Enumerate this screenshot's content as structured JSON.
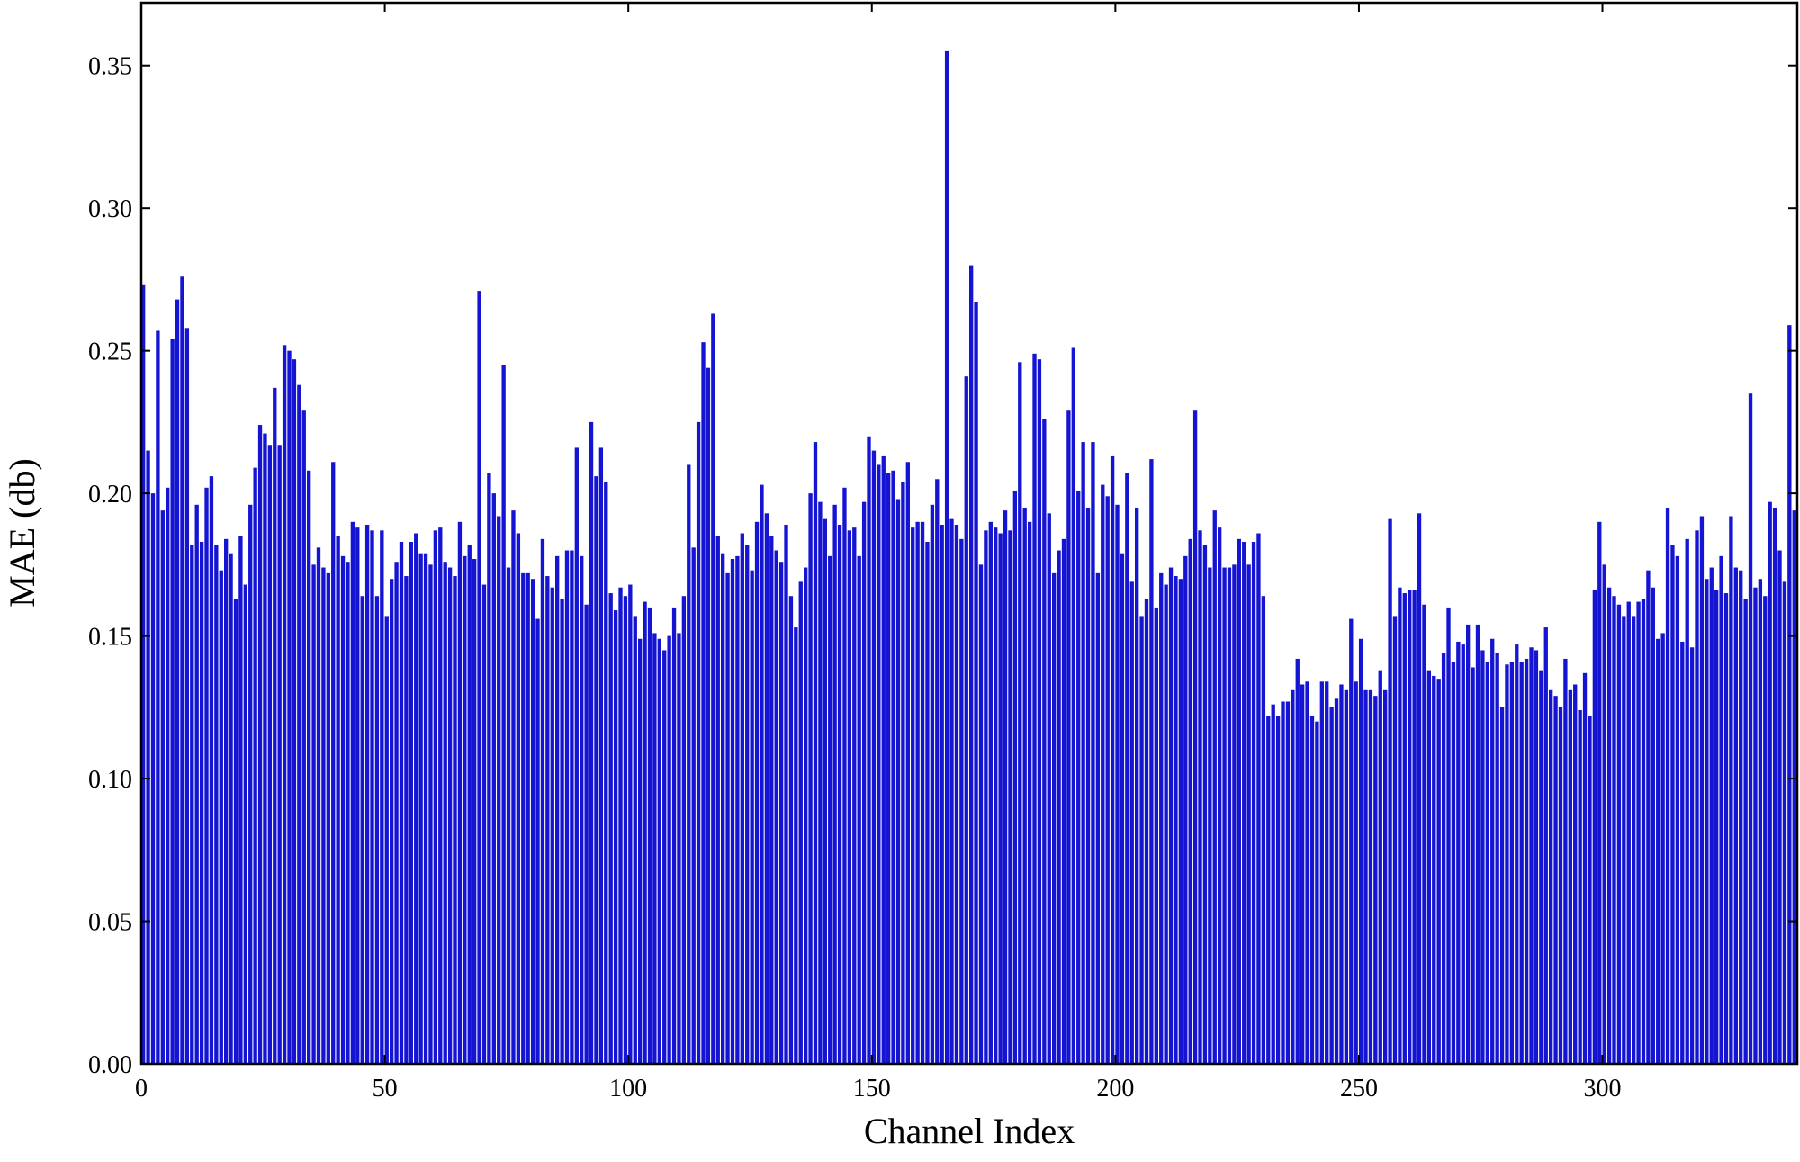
{
  "chart_data": {
    "type": "bar",
    "xlabel": "Channel Index",
    "ylabel": "MAE (db)",
    "color": "#1414d2",
    "bar_width": 0.8,
    "xlim": [
      0,
      340
    ],
    "xticks": [
      0,
      50,
      100,
      150,
      200,
      250,
      300
    ],
    "ylim": [
      0,
      0.372
    ],
    "yticks": [
      {
        "value": 0,
        "label": "0.00"
      },
      0.05,
      {
        "value": 0.1,
        "label": "0.10"
      },
      0.15,
      {
        "value": 0.2,
        "label": "0.20"
      },
      0.25,
      {
        "value": 0.3,
        "label": "0.30"
      },
      0.35
    ],
    "x": [
      0,
      1,
      2,
      3,
      4,
      5,
      6,
      7,
      8,
      9,
      10,
      11,
      12,
      13,
      14,
      15,
      16,
      17,
      18,
      19,
      20,
      21,
      22,
      23,
      24,
      25,
      26,
      27,
      28,
      29,
      30,
      31,
      32,
      33,
      34,
      35,
      36,
      37,
      38,
      39,
      40,
      41,
      42,
      43,
      44,
      45,
      46,
      47,
      48,
      49,
      50,
      51,
      52,
      53,
      54,
      55,
      56,
      57,
      58,
      59,
      60,
      61,
      62,
      63,
      64,
      65,
      66,
      67,
      68,
      69,
      70,
      71,
      72,
      73,
      74,
      75,
      76,
      77,
      78,
      79,
      80,
      81,
      82,
      83,
      84,
      85,
      86,
      87,
      88,
      89,
      90,
      91,
      92,
      93,
      94,
      95,
      96,
      97,
      98,
      99,
      100,
      101,
      102,
      103,
      104,
      105,
      106,
      107,
      108,
      109,
      110,
      111,
      112,
      113,
      114,
      115,
      116,
      117,
      118,
      119,
      120,
      121,
      122,
      123,
      124,
      125,
      126,
      127,
      128,
      129,
      130,
      131,
      132,
      133,
      134,
      135,
      136,
      137,
      138,
      139,
      140,
      141,
      142,
      143,
      144,
      145,
      146,
      147,
      148,
      149,
      150,
      151,
      152,
      153,
      154,
      155,
      156,
      157,
      158,
      159,
      160,
      161,
      162,
      163,
      164,
      165,
      166,
      167,
      168,
      169,
      170,
      171,
      172,
      173,
      174,
      175,
      176,
      177,
      178,
      179,
      180,
      181,
      182,
      183,
      184,
      185,
      186,
      187,
      188,
      189,
      190,
      191,
      192,
      193,
      194,
      195,
      196,
      197,
      198,
      199,
      200,
      201,
      202,
      203,
      204,
      205,
      206,
      207,
      208,
      209,
      210,
      211,
      212,
      213,
      214,
      215,
      216,
      217,
      218,
      219,
      220,
      221,
      222,
      223,
      224,
      225,
      226,
      227,
      228,
      229,
      230,
      231,
      232,
      233,
      234,
      235,
      236,
      237,
      238,
      239,
      240,
      241,
      242,
      243,
      244,
      245,
      246,
      247,
      248,
      249,
      250,
      251,
      252,
      253,
      254,
      255,
      256,
      257,
      258,
      259,
      260,
      261,
      262,
      263,
      264,
      265,
      266,
      267,
      268,
      269,
      270,
      271,
      272,
      273,
      274,
      275,
      276,
      277,
      278,
      279,
      280,
      281,
      282,
      283,
      284,
      285,
      286,
      287,
      288,
      289,
      290,
      291,
      292,
      293,
      294,
      295,
      296,
      297,
      298,
      299,
      300,
      301,
      302,
      303,
      304,
      305,
      306,
      307,
      308,
      309,
      310,
      311,
      312,
      313,
      314,
      315,
      316,
      317,
      318,
      319,
      320,
      321,
      322,
      323,
      324,
      325,
      326,
      327,
      328,
      329,
      330,
      331,
      332,
      333,
      334,
      335,
      336,
      337,
      338,
      339
    ],
    "values": [
      0.273,
      0.215,
      0.2,
      0.257,
      0.194,
      0.202,
      0.254,
      0.268,
      0.276,
      0.258,
      0.182,
      0.196,
      0.183,
      0.202,
      0.206,
      0.182,
      0.173,
      0.184,
      0.179,
      0.163,
      0.185,
      0.168,
      0.196,
      0.209,
      0.224,
      0.221,
      0.217,
      0.237,
      0.217,
      0.252,
      0.25,
      0.247,
      0.238,
      0.229,
      0.208,
      0.175,
      0.181,
      0.174,
      0.172,
      0.211,
      0.185,
      0.178,
      0.176,
      0.19,
      0.188,
      0.164,
      0.189,
      0.187,
      0.164,
      0.187,
      0.157,
      0.17,
      0.176,
      0.183,
      0.171,
      0.183,
      0.186,
      0.179,
      0.179,
      0.175,
      0.187,
      0.188,
      0.176,
      0.174,
      0.171,
      0.19,
      0.178,
      0.182,
      0.177,
      0.271,
      0.168,
      0.207,
      0.2,
      0.192,
      0.245,
      0.174,
      0.194,
      0.186,
      0.172,
      0.172,
      0.17,
      0.156,
      0.184,
      0.171,
      0.167,
      0.178,
      0.163,
      0.18,
      0.18,
      0.216,
      0.178,
      0.161,
      0.225,
      0.206,
      0.216,
      0.204,
      0.165,
      0.159,
      0.167,
      0.164,
      0.168,
      0.157,
      0.149,
      0.162,
      0.16,
      0.151,
      0.149,
      0.145,
      0.15,
      0.16,
      0.151,
      0.164,
      0.21,
      0.181,
      0.225,
      0.253,
      0.244,
      0.263,
      0.185,
      0.179,
      0.172,
      0.177,
      0.178,
      0.186,
      0.182,
      0.173,
      0.19,
      0.203,
      0.193,
      0.185,
      0.18,
      0.176,
      0.189,
      0.164,
      0.153,
      0.169,
      0.174,
      0.2,
      0.218,
      0.197,
      0.191,
      0.178,
      0.196,
      0.189,
      0.202,
      0.187,
      0.188,
      0.178,
      0.197,
      0.22,
      0.215,
      0.21,
      0.213,
      0.207,
      0.208,
      0.198,
      0.204,
      0.211,
      0.188,
      0.19,
      0.19,
      0.183,
      0.196,
      0.205,
      0.189,
      0.355,
      0.191,
      0.189,
      0.184,
      0.241,
      0.28,
      0.267,
      0.175,
      0.187,
      0.19,
      0.188,
      0.186,
      0.194,
      0.187,
      0.201,
      0.246,
      0.195,
      0.19,
      0.249,
      0.247,
      0.226,
      0.193,
      0.172,
      0.18,
      0.184,
      0.229,
      0.251,
      0.201,
      0.218,
      0.195,
      0.218,
      0.172,
      0.203,
      0.199,
      0.213,
      0.196,
      0.179,
      0.207,
      0.169,
      0.195,
      0.157,
      0.163,
      0.212,
      0.16,
      0.172,
      0.168,
      0.174,
      0.171,
      0.17,
      0.178,
      0.184,
      0.229,
      0.187,
      0.182,
      0.174,
      0.194,
      0.188,
      0.174,
      0.174,
      0.175,
      0.184,
      0.183,
      0.175,
      0.183,
      0.186,
      0.164,
      0.122,
      0.126,
      0.122,
      0.127,
      0.127,
      0.131,
      0.142,
      0.133,
      0.134,
      0.122,
      0.12,
      0.134,
      0.134,
      0.125,
      0.128,
      0.133,
      0.131,
      0.156,
      0.134,
      0.149,
      0.131,
      0.131,
      0.129,
      0.138,
      0.131,
      0.191,
      0.157,
      0.167,
      0.165,
      0.166,
      0.166,
      0.193,
      0.161,
      0.138,
      0.136,
      0.135,
      0.144,
      0.16,
      0.141,
      0.148,
      0.147,
      0.154,
      0.139,
      0.154,
      0.145,
      0.141,
      0.149,
      0.144,
      0.125,
      0.14,
      0.141,
      0.147,
      0.141,
      0.142,
      0.146,
      0.145,
      0.138,
      0.153,
      0.131,
      0.129,
      0.125,
      0.142,
      0.131,
      0.133,
      0.124,
      0.137,
      0.122,
      0.166,
      0.19,
      0.175,
      0.167,
      0.164,
      0.161,
      0.157,
      0.162,
      0.157,
      0.162,
      0.163,
      0.173,
      0.167,
      0.149,
      0.151,
      0.195,
      0.182,
      0.178,
      0.148,
      0.184,
      0.146,
      0.187,
      0.192,
      0.17,
      0.174,
      0.166,
      0.178,
      0.165,
      0.192,
      0.174,
      0.173,
      0.163,
      0.235,
      0.167,
      0.17,
      0.164,
      0.197,
      0.195,
      0.18,
      0.169,
      0.259,
      0.194
    ]
  }
}
